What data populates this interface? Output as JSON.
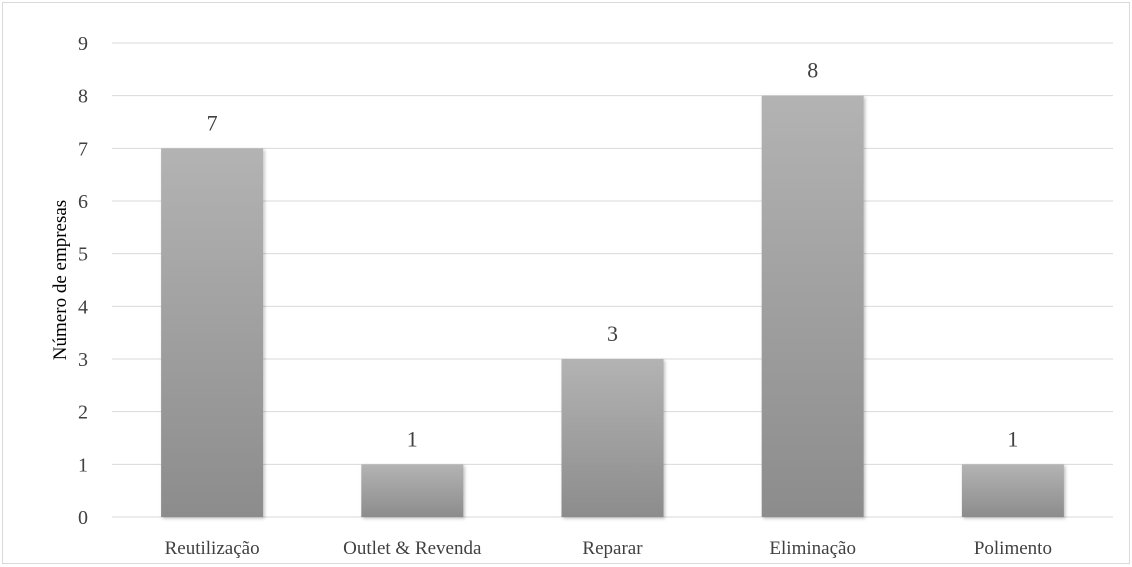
{
  "chart_data": {
    "type": "bar",
    "title": "",
    "xlabel": "",
    "ylabel": "Número de empresas",
    "categories": [
      "Reutilização",
      "Outlet & Revenda",
      "Reparar",
      "Eliminação",
      "Polimento"
    ],
    "values": [
      7,
      1,
      3,
      8,
      1
    ],
    "ylim": [
      0,
      9
    ],
    "yticks": [
      "0",
      "1",
      "2",
      "3",
      "4",
      "5",
      "6",
      "7",
      "8",
      "9"
    ],
    "data_labels": [
      "7",
      "1",
      "3",
      "8",
      "1"
    ],
    "grid": true,
    "legend": "none",
    "colors": {
      "bar_top": "#b3b3b3",
      "bar_bottom": "#8c8c8c",
      "grid": "#d9d9d9",
      "text": "#404040"
    }
  }
}
